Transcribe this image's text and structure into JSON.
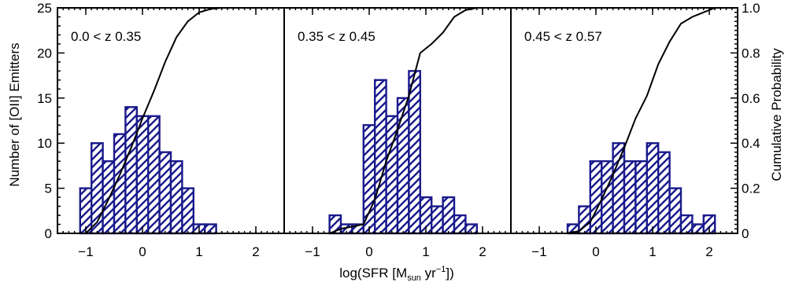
{
  "figure": {
    "xlabel_main": "log(SFR [M",
    "xlabel_sub": "sun",
    "xlabel_mid": " yr",
    "xlabel_sup": "−1",
    "xlabel_end": "])",
    "ylabel_left": "Number of [OII] Emitters",
    "ylabel_right": "Cumulative Probability"
  },
  "colors": {
    "bars": "#1a1a8c",
    "cumulative": "#000000",
    "axes": "#000000"
  },
  "chart_data": [
    {
      "type": "bar",
      "panel_label": "0.0 < z 0.35",
      "bin_width": 0.2,
      "bin_starts": [
        -1.1,
        -0.9,
        -0.7,
        -0.5,
        -0.3,
        -0.1,
        0.1,
        0.3,
        0.5,
        0.7,
        0.9,
        1.1
      ],
      "counts": [
        5,
        10,
        8,
        11,
        14,
        13,
        13,
        9,
        8,
        5,
        1,
        1
      ],
      "cumulative": {
        "x": [
          -1.0,
          -0.8,
          -0.6,
          -0.4,
          -0.2,
          0.0,
          0.2,
          0.4,
          0.6,
          0.8,
          1.0,
          1.2,
          1.4
        ],
        "y": [
          0.0,
          0.05,
          0.15,
          0.26,
          0.38,
          0.51,
          0.63,
          0.76,
          0.87,
          0.94,
          0.98,
          0.995,
          1.0
        ]
      },
      "xlim": [
        -1.5,
        2.5
      ],
      "ylim": [
        0,
        25
      ],
      "xticks": [
        -1,
        0,
        1,
        2
      ],
      "xtick_labels": [
        "−1",
        "0",
        "1",
        "2"
      ],
      "yticks": [
        0,
        5,
        10,
        15,
        20,
        25
      ],
      "ytick_labels": [
        "0",
        "5",
        "10",
        "15",
        "20",
        "25"
      ]
    },
    {
      "type": "bar",
      "panel_label": "0.35 < z 0.45",
      "bin_width": 0.2,
      "bin_starts": [
        -0.7,
        -0.5,
        -0.3,
        -0.1,
        0.1,
        0.3,
        0.5,
        0.7,
        0.9,
        1.1,
        1.3,
        1.5,
        1.7
      ],
      "counts": [
        2,
        1,
        1,
        12,
        17,
        13,
        15,
        18,
        4,
        3,
        4,
        2,
        1
      ],
      "cumulative": {
        "x": [
          -0.7,
          -0.5,
          -0.3,
          -0.1,
          0.1,
          0.3,
          0.5,
          0.7,
          0.9,
          1.1,
          1.3,
          1.5,
          1.7,
          1.9
        ],
        "y": [
          0.0,
          0.02,
          0.03,
          0.04,
          0.15,
          0.32,
          0.46,
          0.61,
          0.8,
          0.84,
          0.89,
          0.96,
          0.99,
          1.0
        ]
      },
      "xlim": [
        -1.5,
        2.5
      ],
      "ylim": [
        0,
        25
      ],
      "xticks": [
        -1,
        0,
        1,
        2
      ],
      "xtick_labels": [
        "−1",
        "0",
        "1",
        "2"
      ]
    },
    {
      "type": "bar",
      "panel_label": "0.45 < z 0.57",
      "bin_width": 0.2,
      "bin_starts": [
        -0.5,
        -0.3,
        -0.1,
        0.1,
        0.3,
        0.5,
        0.7,
        0.9,
        1.1,
        1.3,
        1.5,
        1.7,
        1.9
      ],
      "counts": [
        1,
        3,
        8,
        8,
        10,
        8,
        8,
        10,
        9,
        5,
        2,
        1,
        2
      ],
      "cumulative": {
        "x": [
          -0.5,
          -0.3,
          -0.1,
          0.1,
          0.3,
          0.5,
          0.7,
          0.9,
          1.1,
          1.3,
          1.5,
          1.7,
          1.9,
          2.1
        ],
        "y": [
          0.0,
          0.01,
          0.05,
          0.15,
          0.26,
          0.38,
          0.51,
          0.61,
          0.75,
          0.85,
          0.93,
          0.96,
          0.98,
          1.0
        ]
      },
      "xlim": [
        -1.5,
        2.5
      ],
      "ylim": [
        0,
        1
      ],
      "xticks": [
        -1,
        0,
        1,
        2
      ],
      "xtick_labels": [
        "−1",
        "0",
        "1",
        "2"
      ],
      "right_yticks": [
        0,
        0.2,
        0.4,
        0.6,
        0.8,
        1.0
      ],
      "right_ytick_labels": [
        "0",
        "0.2",
        "0.4",
        "0.6",
        "0.8",
        "1.0"
      ]
    }
  ]
}
